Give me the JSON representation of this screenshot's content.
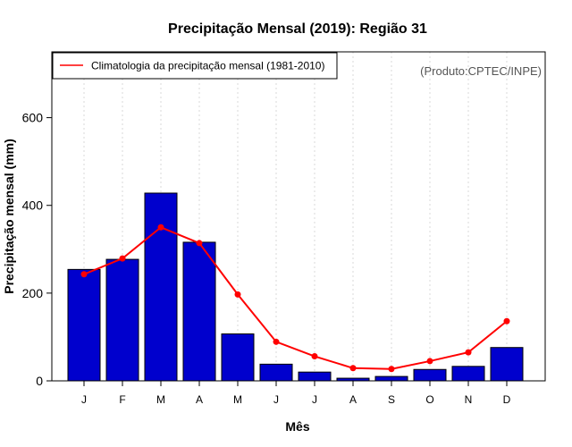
{
  "chart_data": {
    "type": "bar",
    "title": "Precipitação Mensal (2019): Região 31",
    "xlabel": "Mês",
    "ylabel": "Precipitação mensal (mm)",
    "ylim": [
      0,
      750
    ],
    "yticks": [
      0,
      200,
      400,
      600
    ],
    "grid": "vertical dotted",
    "categories": [
      "J",
      "F",
      "M",
      "A",
      "M",
      "J",
      "J",
      "A",
      "S",
      "O",
      "N",
      "D"
    ],
    "series": [
      {
        "name": "Precipitação mensal 2019",
        "type": "bar",
        "color": "#0000cd",
        "values": [
          254,
          277,
          428,
          316,
          107,
          38,
          20,
          6,
          10,
          26,
          33,
          76
        ]
      },
      {
        "name": "Climatologia da precipitação mensal (1981-2010)",
        "type": "line",
        "color": "#ff0000",
        "values": [
          243,
          279,
          350,
          314,
          197,
          89,
          56,
          29,
          27,
          45,
          65,
          136
        ]
      }
    ],
    "legend": {
      "position": "top-left",
      "entries": [
        "Climatologia da precipitação mensal (1981-2010)"
      ]
    },
    "annotation": "(Produto:CPTEC/INPE)"
  }
}
